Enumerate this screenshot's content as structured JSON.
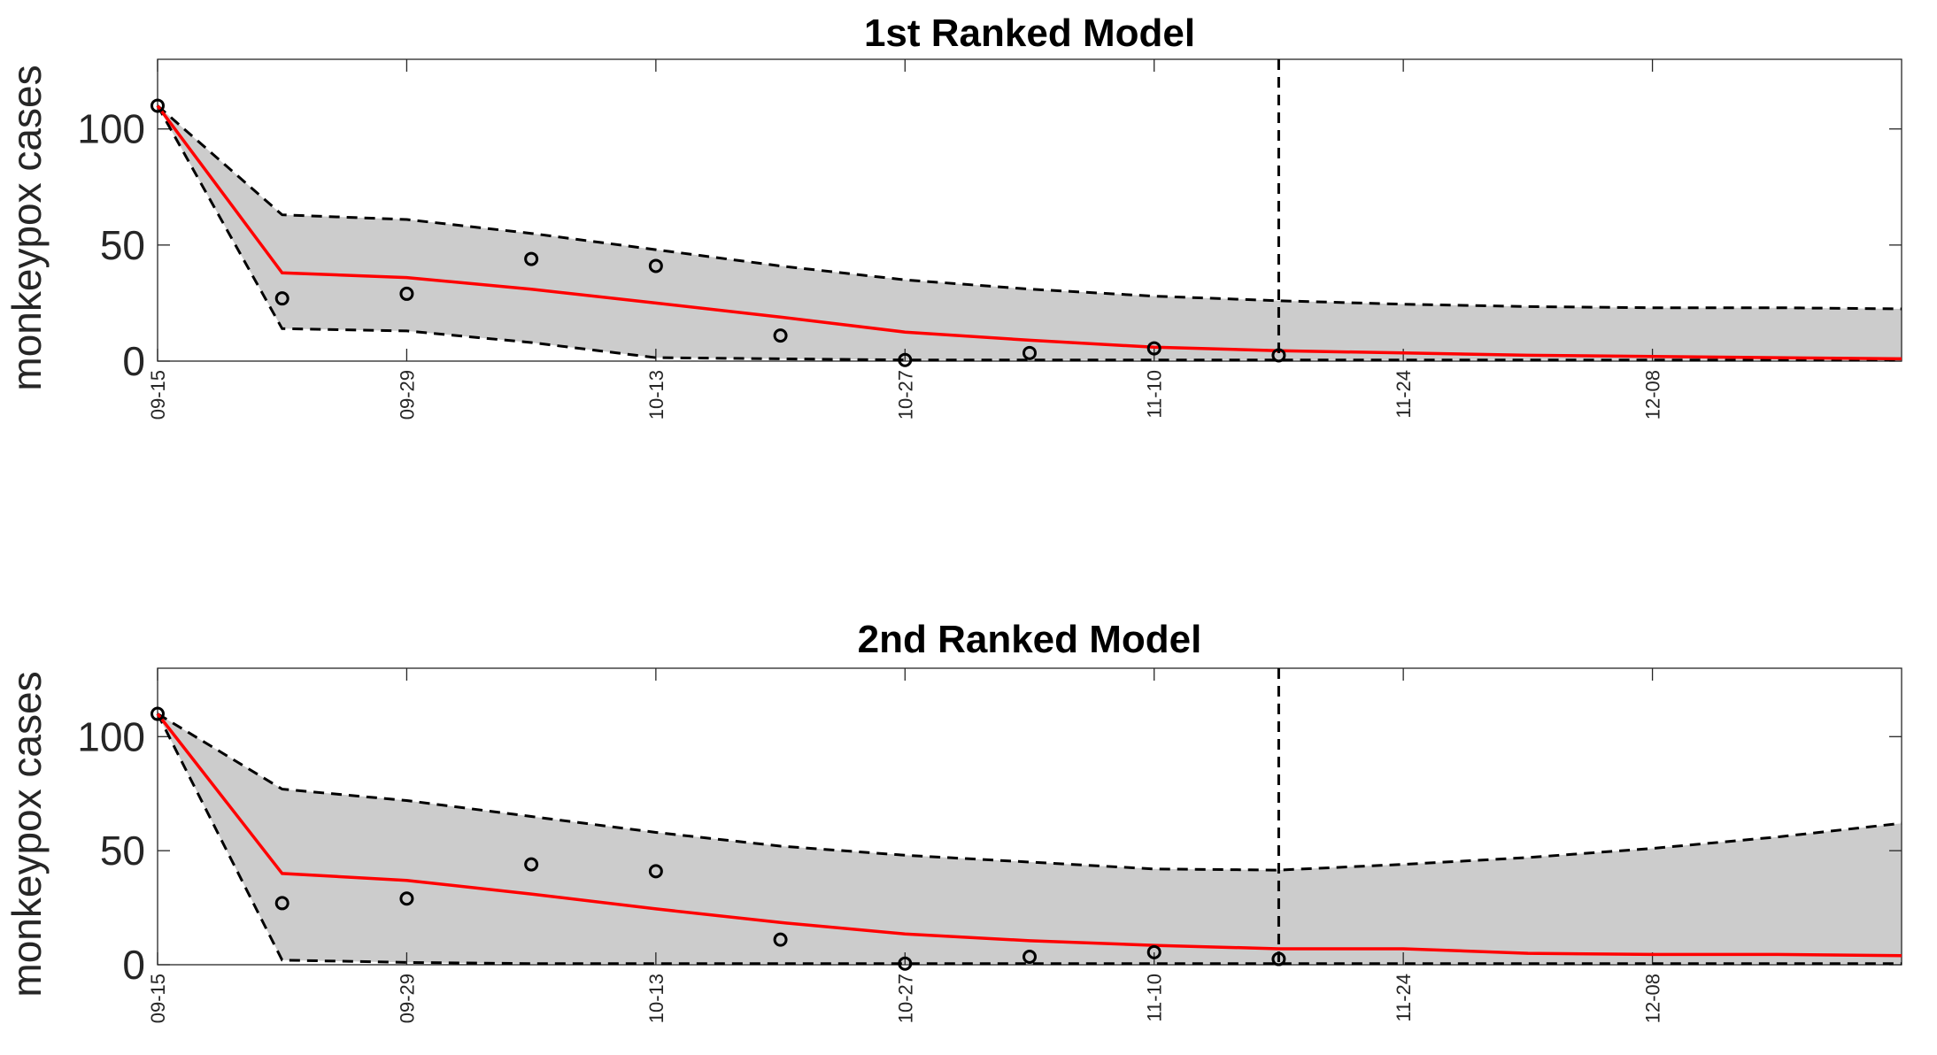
{
  "chart_data": [
    {
      "type": "line",
      "title": "1st Ranked Model",
      "ylabel": "monkeypox cases",
      "xlabel": "",
      "ylim": [
        0,
        130
      ],
      "yticks": [
        0,
        50,
        100
      ],
      "xlim": [
        "09-15",
        "12-22"
      ],
      "xticks": [
        "09-15",
        "09-29",
        "10-13",
        "10-27",
        "11-10",
        "11-24",
        "12-08"
      ],
      "grid": false,
      "forecast_start": "11-17",
      "colors": {
        "fit": "#ff0000",
        "band": "#cccccc",
        "bounds": "#000000",
        "observed": "#000000"
      },
      "x": [
        "09-15",
        "09-22",
        "09-29",
        "10-06",
        "10-13",
        "10-20",
        "10-27",
        "11-03",
        "11-10",
        "11-17",
        "11-24",
        "12-01",
        "12-08",
        "12-15",
        "12-22"
      ],
      "series": [
        {
          "role": "observed",
          "values": [
            110,
            27,
            29,
            44,
            41,
            11,
            0.5,
            3.5,
            5.5,
            2.5,
            null,
            null,
            null,
            null,
            null
          ]
        },
        {
          "role": "fit",
          "values": [
            110,
            38,
            36,
            31,
            25,
            19,
            12.5,
            9,
            6,
            4.5,
            3.5,
            2.5,
            2,
            1.5,
            1
          ]
        },
        {
          "role": "upper",
          "values": [
            110,
            63,
            61,
            55,
            48,
            41,
            35,
            31,
            28,
            26,
            24.5,
            23.5,
            23,
            23,
            22.5
          ]
        },
        {
          "role": "lower",
          "values": [
            110,
            14,
            13,
            8,
            1.5,
            1,
            0.5,
            0.5,
            0.5,
            0.5,
            0.5,
            0.5,
            0.5,
            0.5,
            0.5
          ]
        }
      ]
    },
    {
      "type": "line",
      "title": "2nd Ranked Model",
      "ylabel": "monkeypox cases",
      "xlabel": "",
      "ylim": [
        0,
        130
      ],
      "yticks": [
        0,
        50,
        100
      ],
      "xlim": [
        "09-15",
        "12-22"
      ],
      "xticks": [
        "09-15",
        "09-29",
        "10-13",
        "10-27",
        "11-10",
        "11-24",
        "12-08"
      ],
      "grid": false,
      "forecast_start": "11-17",
      "colors": {
        "fit": "#ff0000",
        "band": "#cccccc",
        "bounds": "#000000",
        "observed": "#000000"
      },
      "x": [
        "09-15",
        "09-22",
        "09-29",
        "10-06",
        "10-13",
        "10-20",
        "10-27",
        "11-03",
        "11-10",
        "11-17",
        "11-24",
        "12-01",
        "12-08",
        "12-15",
        "12-22"
      ],
      "series": [
        {
          "role": "observed",
          "values": [
            110,
            27,
            29,
            44,
            41,
            11,
            0.5,
            3.5,
            5.5,
            2.5,
            null,
            null,
            null,
            null,
            null
          ]
        },
        {
          "role": "fit",
          "values": [
            110,
            40,
            37,
            31,
            24.5,
            18.5,
            13.5,
            10.5,
            8.5,
            7,
            7,
            5,
            4.5,
            4.5,
            4
          ]
        },
        {
          "role": "upper",
          "values": [
            110,
            77,
            72,
            65,
            58,
            52,
            48,
            45,
            42,
            41.5,
            44,
            47,
            51,
            56,
            62
          ]
        },
        {
          "role": "lower",
          "values": [
            110,
            2,
            1,
            0.5,
            0.5,
            0.5,
            0.5,
            0.5,
            0.5,
            0.5,
            0.5,
            0.5,
            0.5,
            0.5,
            0.5
          ]
        }
      ]
    }
  ]
}
